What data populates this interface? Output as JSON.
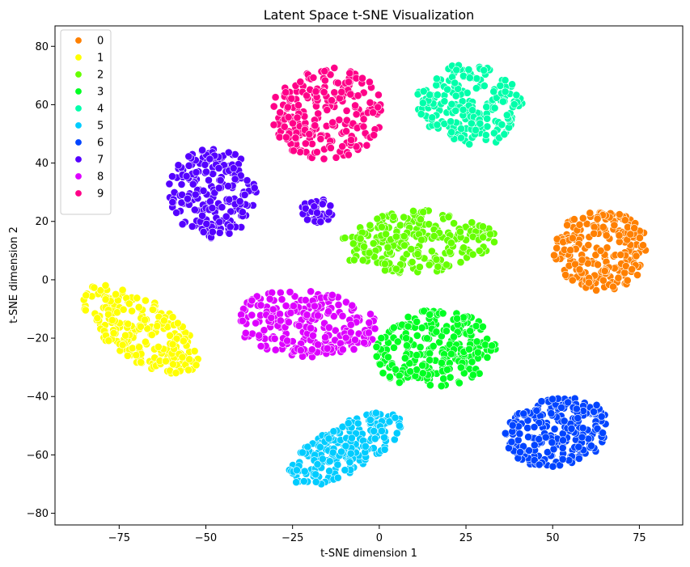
{
  "chart_data": {
    "type": "scatter",
    "title": "Latent Space t-SNE Visualization",
    "xlabel": "t-SNE dimension 1",
    "ylabel": "t-SNE dimension 2",
    "xlim": [
      -93.5,
      87.5
    ],
    "ylim": [
      -84,
      87
    ],
    "xticks": [
      -75,
      -50,
      -25,
      0,
      25,
      50,
      75
    ],
    "yticks": [
      -80,
      -60,
      -40,
      -20,
      0,
      20,
      40,
      60,
      80
    ],
    "grid": false,
    "legend_position": "top-left",
    "series": [
      {
        "name": "0",
        "color": "#ff8000",
        "clusters": [
          {
            "cx": 64,
            "cy": 10,
            "rx": 14,
            "ry": 14,
            "rot": 25,
            "n": 230
          }
        ]
      },
      {
        "name": "1",
        "color": "#ffff00",
        "clusters": [
          {
            "cx": -69,
            "cy": -17,
            "rx": 21,
            "ry": 10,
            "rot": -40,
            "n": 240
          }
        ]
      },
      {
        "name": "2",
        "color": "#66ff00",
        "clusters": [
          {
            "cx": 11,
            "cy": 13,
            "rx": 23,
            "ry": 11,
            "rot": 5,
            "n": 240
          }
        ]
      },
      {
        "name": "3",
        "color": "#00ff22",
        "clusters": [
          {
            "cx": 16,
            "cy": -24,
            "rx": 18,
            "ry": 14,
            "rot": 10,
            "n": 250
          }
        ]
      },
      {
        "name": "4",
        "color": "#00ffaa",
        "clusters": [
          {
            "cx": 26,
            "cy": 60,
            "rx": 16,
            "ry": 14,
            "rot": -25,
            "n": 210
          }
        ]
      },
      {
        "name": "5",
        "color": "#00ccff",
        "clusters": [
          {
            "cx": -10,
            "cy": -58,
            "rx": 20,
            "ry": 8,
            "rot": 35,
            "n": 210
          }
        ]
      },
      {
        "name": "6",
        "color": "#0044ff",
        "clusters": [
          {
            "cx": 51,
            "cy": -52,
            "rx": 16,
            "ry": 12,
            "rot": 15,
            "n": 230
          }
        ]
      },
      {
        "name": "7",
        "color": "#5500ff",
        "clusters": [
          {
            "cx": -48,
            "cy": 30,
            "rx": 13,
            "ry": 16,
            "rot": 0,
            "n": 200
          },
          {
            "cx": -18,
            "cy": 24,
            "rx": 5,
            "ry": 5,
            "rot": 0,
            "n": 30
          }
        ]
      },
      {
        "name": "8",
        "color": "#dd00ff",
        "clusters": [
          {
            "cx": -21,
            "cy": -15,
            "rx": 21,
            "ry": 12,
            "rot": -5,
            "n": 240
          }
        ]
      },
      {
        "name": "9",
        "color": "#ff0088",
        "clusters": [
          {
            "cx": -15,
            "cy": 57,
            "rx": 17,
            "ry": 16,
            "rot": 10,
            "n": 230
          }
        ]
      }
    ]
  }
}
